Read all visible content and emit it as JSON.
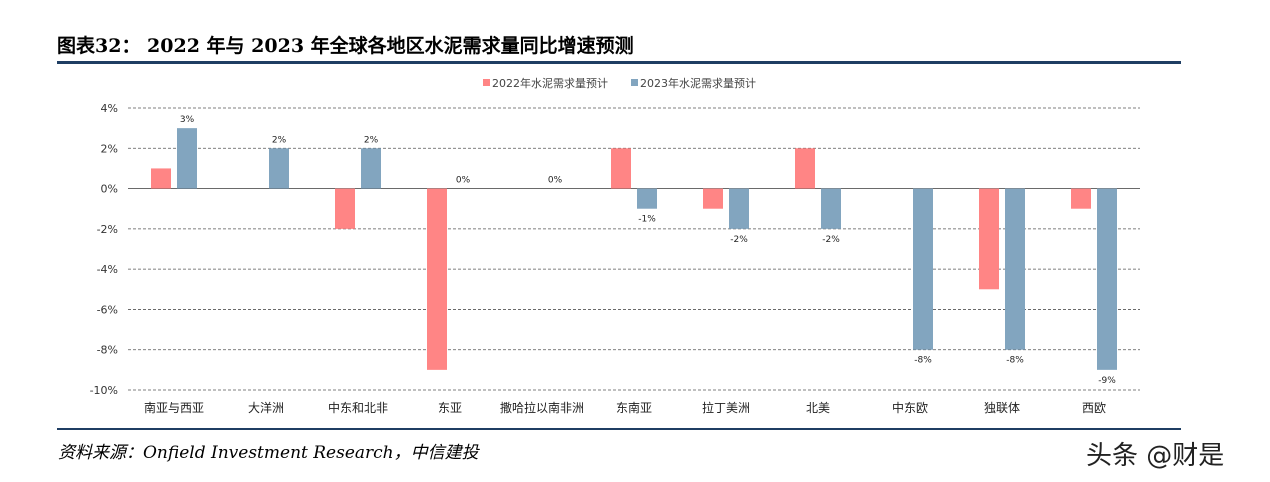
{
  "figure": {
    "title": "图表32：  2022 年与 2023 年全球各地区水泥需求量同比增速预测",
    "source": "资料来源：Onfield Investment Research，中信建投",
    "watermark": "头条 @财是"
  },
  "chart_data": {
    "type": "bar",
    "title": "",
    "xlabel": "",
    "ylabel": "",
    "categories": [
      "南亚与西亚",
      "大洋洲",
      "中东和北非",
      "东亚",
      "撒哈拉以南非洲",
      "东南亚",
      "拉丁美洲",
      "北美",
      "中东欧",
      "独联体",
      "西欧"
    ],
    "series": [
      {
        "name": "2022年水泥需求量预计",
        "values": [
          1,
          0,
          -2,
          -9,
          0,
          2,
          -1,
          2,
          0,
          -5,
          -1
        ],
        "color": "#ff8585"
      },
      {
        "name": "2023年水泥需求量预计",
        "values": [
          3,
          2,
          2,
          0,
          0,
          -1,
          -2,
          -2,
          -8,
          -8,
          -9
        ],
        "color": "#82a5bf"
      }
    ],
    "data_labels_series": "2023年水泥需求量预计",
    "data_labels": [
      "3%",
      "2%",
      "2%",
      "0%",
      "0%",
      "-1%",
      "-2%",
      "-2%",
      "-8%",
      "-8%",
      "-9%"
    ],
    "yticks": [
      4,
      2,
      0,
      -2,
      -4,
      -6,
      -8,
      -10
    ],
    "ytick_labels": [
      "4%",
      "2%",
      "0%",
      "-2%",
      "-4%",
      "-6%",
      "-8%",
      "-10%"
    ],
    "ylim": [
      -10,
      4
    ],
    "grid": true,
    "legend_position": "top-center"
  }
}
